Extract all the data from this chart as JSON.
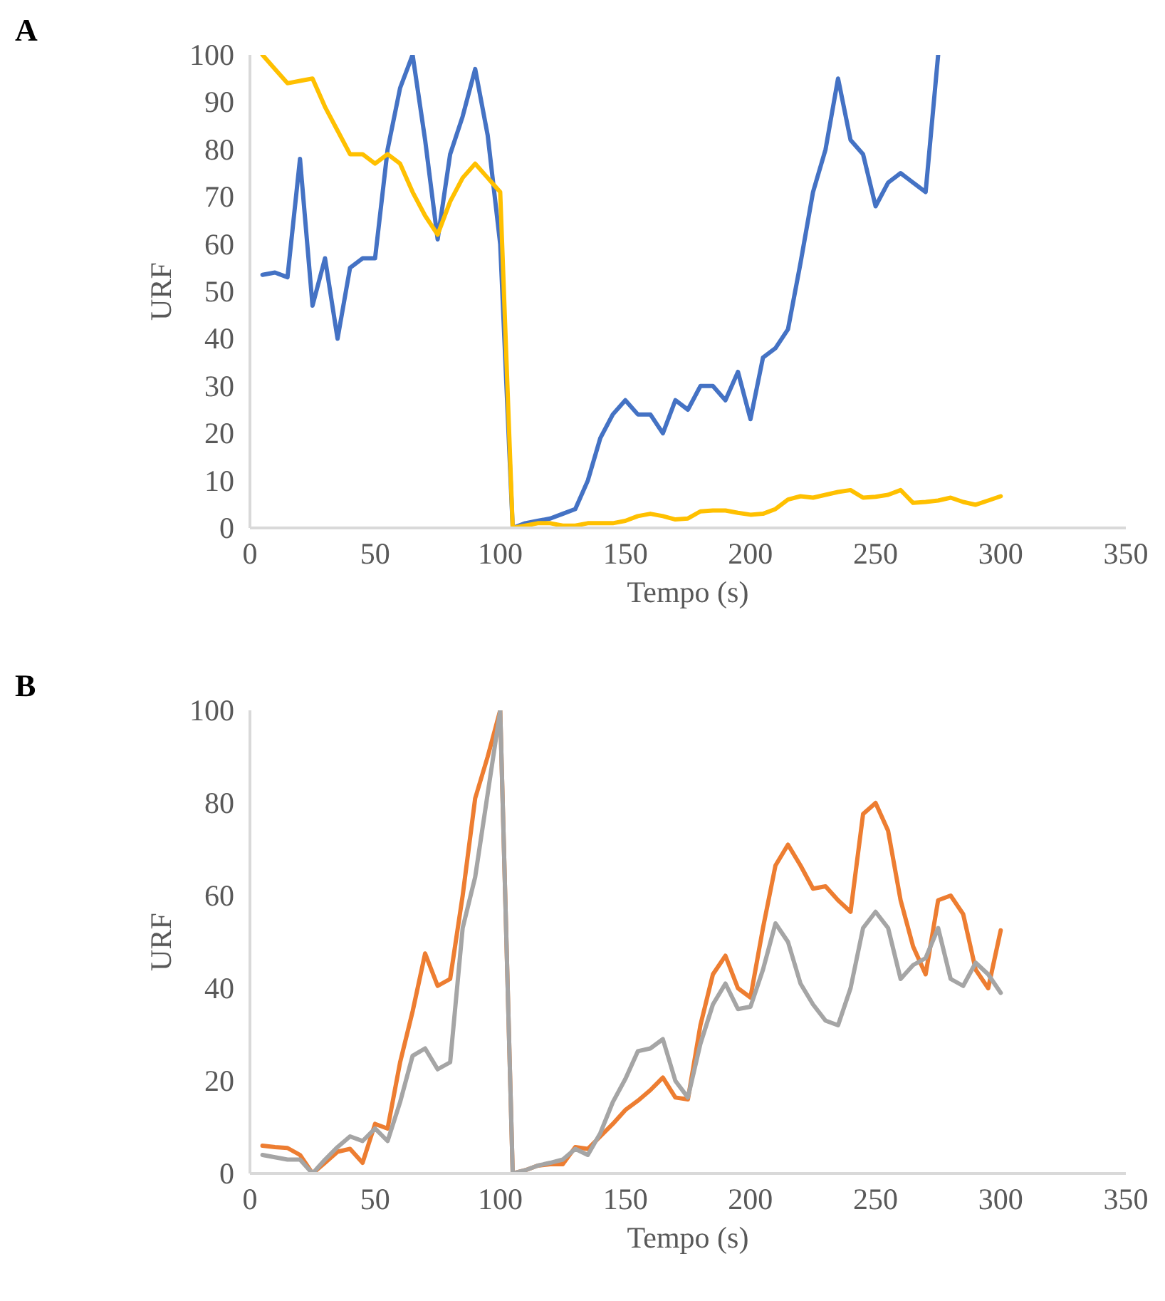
{
  "chart_data": [
    {
      "type": "line",
      "annotations": [
        "A"
      ],
      "xlabel": "Tempo (s)",
      "ylabel": "URF",
      "x": [
        5,
        10,
        15,
        20,
        25,
        30,
        35,
        40,
        45,
        50,
        55,
        60,
        65,
        70,
        75,
        80,
        85,
        90,
        95,
        100,
        105,
        110,
        115,
        120,
        125,
        130,
        135,
        140,
        145,
        150,
        155,
        160,
        165,
        170,
        175,
        180,
        185,
        190,
        195,
        200,
        205,
        210,
        215,
        220,
        225,
        230,
        235,
        240,
        245,
        250,
        255,
        260,
        265,
        270,
        275,
        280,
        285,
        290,
        295,
        300
      ],
      "series": [
        {
          "color": "#4472c4",
          "values": [
            53.5,
            54,
            53,
            78,
            47,
            57,
            40,
            55,
            57,
            57,
            80,
            93,
            100,
            82,
            61,
            79,
            87,
            97,
            83,
            60,
            0,
            1,
            1.5,
            2,
            3,
            4,
            10,
            19,
            24,
            27,
            24,
            24,
            20,
            27,
            25,
            30,
            30,
            27,
            33,
            23,
            36,
            38,
            42,
            56,
            71,
            80,
            95,
            82,
            79,
            68,
            73,
            75,
            73,
            71,
            100,
            null,
            null,
            null,
            null,
            null
          ]
        },
        {
          "color": "#ffc000",
          "values": [
            100,
            97,
            94,
            94.5,
            95,
            89,
            84,
            79,
            79,
            77,
            79,
            77,
            71,
            66,
            62,
            69,
            74,
            77,
            74,
            71,
            0,
            0.5,
            1,
            1,
            0.5,
            0.5,
            1,
            1,
            1,
            1.5,
            2.5,
            3,
            2.5,
            1.8,
            2,
            3.5,
            3.7,
            3.7,
            3.2,
            2.8,
            3,
            4,
            6,
            6.7,
            6.4,
            7,
            7.6,
            8,
            6.4,
            6.6,
            7,
            8,
            5.3,
            5.5,
            5.8,
            6.4,
            5.5,
            4.9,
            5.8,
            6.7
          ]
        }
      ],
      "xlim": [
        0,
        350
      ],
      "ylim": [
        0,
        100
      ],
      "xticks": [
        0,
        50,
        100,
        150,
        200,
        250,
        300,
        350
      ],
      "yticks": [
        0,
        10,
        20,
        30,
        40,
        50,
        60,
        70,
        80,
        90,
        100
      ],
      "grid": false
    },
    {
      "type": "line",
      "annotations": [
        "B"
      ],
      "xlabel": "Tempo (s)",
      "ylabel": "URF",
      "x": [
        5,
        10,
        15,
        20,
        25,
        30,
        35,
        40,
        45,
        50,
        55,
        60,
        65,
        70,
        75,
        80,
        85,
        90,
        95,
        100,
        105,
        110,
        115,
        120,
        125,
        130,
        135,
        140,
        145,
        150,
        155,
        160,
        165,
        170,
        175,
        180,
        185,
        190,
        195,
        200,
        205,
        210,
        215,
        220,
        225,
        230,
        235,
        240,
        245,
        250,
        255,
        260,
        265,
        270,
        275,
        280,
        285,
        290,
        295,
        300
      ],
      "series": [
        {
          "color": "#ed7d31",
          "values": [
            6,
            5.7,
            5.5,
            4,
            0,
            2.3,
            4.7,
            5.3,
            2.3,
            10.7,
            9.7,
            24,
            35,
            47.5,
            40.5,
            42,
            60,
            81,
            90,
            100,
            0,
            0.7,
            1.7,
            2,
            2,
            5.7,
            5.3,
            8,
            10.7,
            13.7,
            15.7,
            18,
            20.7,
            16.4,
            16,
            32,
            43,
            47,
            40,
            38,
            53,
            66.5,
            71,
            66.5,
            61.5,
            62,
            59,
            56.5,
            77.6,
            80,
            74,
            59,
            49,
            43,
            59,
            60,
            56,
            44,
            40,
            52.5
          ]
        },
        {
          "color": "#a5a5a5",
          "values": [
            4,
            3.5,
            3,
            3,
            0,
            3,
            5.7,
            8,
            7,
            9.7,
            7,
            15.4,
            25.4,
            27,
            22.5,
            24,
            53,
            64,
            82,
            100,
            0,
            0.7,
            1.7,
            2.3,
            3,
            5.3,
            4,
            8.7,
            15.4,
            20.4,
            26.4,
            27,
            29,
            20,
            16.4,
            28,
            36.5,
            41,
            35.5,
            36,
            44,
            54,
            50,
            41,
            36.5,
            33,
            32,
            40,
            53,
            56.5,
            53,
            42,
            45,
            46.5,
            53,
            42,
            40.5,
            45.5,
            43,
            39
          ]
        }
      ],
      "xlim": [
        0,
        350
      ],
      "ylim": [
        0,
        100
      ],
      "xticks": [
        0,
        50,
        100,
        150,
        200,
        250,
        300,
        350
      ],
      "yticks": [
        0,
        20,
        40,
        60,
        80,
        100
      ],
      "grid": false
    }
  ]
}
